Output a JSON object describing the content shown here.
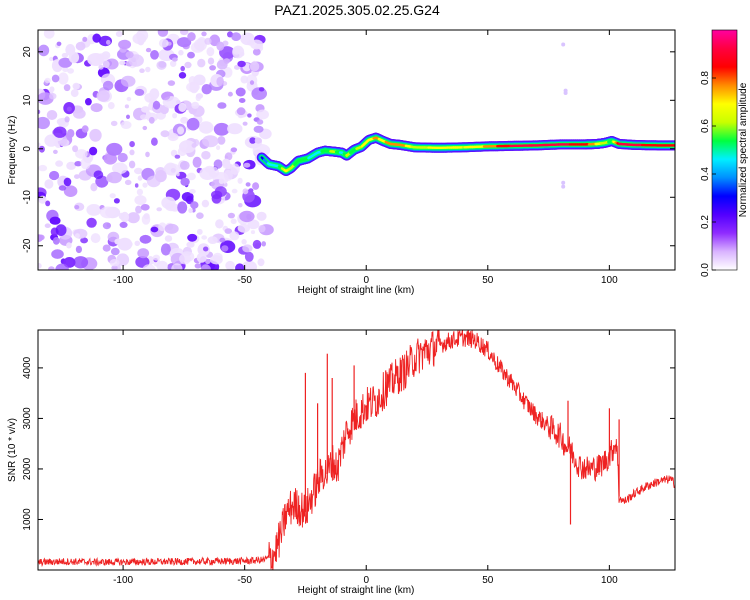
{
  "figure_title": "PAZ1.2025.305.02.25.G24",
  "chart_data": [
    {
      "type": "heatmap",
      "title": "PAZ1.2025.305.02.25.G24",
      "xlabel": "Height of straight line (km)",
      "ylabel": "Frequency (Hz)",
      "xlim": [
        -135,
        127
      ],
      "ylim": [
        -25,
        24.5
      ],
      "xticks": [
        -100,
        -50,
        0,
        50,
        100
      ],
      "yticks": [
        -20,
        -10,
        0,
        10,
        20
      ],
      "xtick_labels": [
        "-100",
        "-50",
        "0",
        "50",
        "100"
      ],
      "ytick_labels": [
        "-20",
        "-10",
        "0",
        "10",
        "20"
      ],
      "noise_region": {
        "x": [
          -135,
          -41
        ],
        "y": [
          -25,
          24.5
        ],
        "note": "scattered low-amplitude noise blobs"
      },
      "signal_ridge": {
        "x": [
          -43,
          -40,
          -36,
          -33,
          -31,
          -28,
          -24,
          -20,
          -17,
          -13,
          -10,
          -8,
          -5,
          -2,
          1,
          4,
          7,
          10,
          14,
          20,
          30,
          40,
          50,
          60,
          70,
          80,
          90,
          95,
          98,
          101,
          104,
          110,
          120,
          127
        ],
        "freq": [
          -1.8,
          -3.2,
          -3.6,
          -4.6,
          -4.0,
          -2.5,
          -2.0,
          -0.8,
          -0.4,
          -0.6,
          -0.8,
          -1.4,
          -0.2,
          0.4,
          1.8,
          2.3,
          1.6,
          1.0,
          0.8,
          0.3,
          0.2,
          0.3,
          0.5,
          0.6,
          0.7,
          0.9,
          0.9,
          1.0,
          1.2,
          1.6,
          1.0,
          0.8,
          0.7,
          0.7
        ],
        "amplitude": [
          0.3,
          0.45,
          0.5,
          0.7,
          0.6,
          0.55,
          0.5,
          0.45,
          0.55,
          0.6,
          0.45,
          0.6,
          0.55,
          0.65,
          0.7,
          0.75,
          0.7,
          0.8,
          0.8,
          0.6,
          0.7,
          0.65,
          0.75,
          0.9,
          0.95,
          0.9,
          0.85,
          0.7,
          0.6,
          0.55,
          0.9,
          0.9,
          0.85,
          0.85
        ]
      },
      "outliers": [
        {
          "x": 81,
          "freq": 21.5
        },
        {
          "x": 81,
          "freq": -7
        },
        {
          "x": 81,
          "freq": -7.8
        },
        {
          "x": 82,
          "freq": 12
        },
        {
          "x": 82,
          "freq": 11.5
        }
      ],
      "colorbar": {
        "label": "Normalized spectral amplitude",
        "range": [
          0,
          1
        ],
        "ticks": [
          0.0,
          0.2,
          0.4,
          0.6,
          0.8
        ],
        "tick_labels": [
          "0.0",
          "0.2",
          "0.4",
          "0.6",
          "0.8"
        ],
        "colors": [
          "#ffffff",
          "#d9b3ff",
          "#8f2cff",
          "#5200ff",
          "#0000ff",
          "#0090ff",
          "#00f0ff",
          "#00ff40",
          "#c8ff00",
          "#ffff00",
          "#ff8c00",
          "#ff0000",
          "#ff0040",
          "#ff00a0"
        ]
      }
    },
    {
      "type": "line",
      "xlabel": "Height of straight line (km)",
      "ylabel": "SNR (10 * v/v)",
      "xlim": [
        -135,
        127
      ],
      "ylim": [
        0,
        4750
      ],
      "xticks": [
        -100,
        -50,
        0,
        50,
        100
      ],
      "yticks": [
        1000,
        2000,
        3000,
        4000
      ],
      "xtick_labels": [
        "-100",
        "-50",
        "0",
        "50",
        "100"
      ],
      "ytick_labels": [
        "1000",
        "2000",
        "3000",
        "4000"
      ],
      "series": [
        {
          "name": "SNR",
          "color": "#ee2222",
          "x": [
            -135,
            -125,
            -110,
            -95,
            -80,
            -65,
            -55,
            -48,
            -42,
            -38,
            -35,
            -33,
            -30,
            -28,
            -25,
            -22,
            -20,
            -18,
            -16,
            -14,
            -12,
            -10,
            -8,
            -6,
            -4,
            -2,
            0,
            4,
            8,
            12,
            16,
            20,
            25,
            30,
            35,
            40,
            45,
            50,
            55,
            60,
            65,
            70,
            75,
            80,
            82,
            84,
            86,
            88,
            92,
            96,
            100,
            103,
            104,
            106,
            110,
            115,
            120,
            125,
            127
          ],
          "y": [
            150,
            170,
            155,
            160,
            165,
            170,
            175,
            180,
            200,
            300,
            700,
            1100,
            1300,
            1250,
            1150,
            1500,
            1700,
            1950,
            1900,
            2150,
            2000,
            2400,
            2750,
            2900,
            3050,
            3150,
            3250,
            3350,
            3600,
            3800,
            3950,
            4200,
            4350,
            4450,
            4550,
            4600,
            4550,
            4350,
            4000,
            3700,
            3350,
            3050,
            2850,
            2650,
            2450,
            2400,
            2200,
            2050,
            2000,
            2050,
            2250,
            2550,
            1450,
            1350,
            1500,
            1650,
            1750,
            1800,
            1700
          ]
        }
      ],
      "spikes": [
        {
          "x": -25,
          "peak": 3900
        },
        {
          "x": -20,
          "peak": 3300
        },
        {
          "x": -16,
          "peak": 4280
        },
        {
          "x": -14,
          "peak": 3800
        },
        {
          "x": -5,
          "peak": 4050
        },
        {
          "x": 8,
          "peak": 3950
        },
        {
          "x": 12,
          "peak": 3800
        },
        {
          "x": 83,
          "peak": 3350
        },
        {
          "x": 84,
          "peak": 900
        },
        {
          "x": 100,
          "peak": 3200
        },
        {
          "x": 104,
          "peak": 2980
        }
      ]
    }
  ]
}
